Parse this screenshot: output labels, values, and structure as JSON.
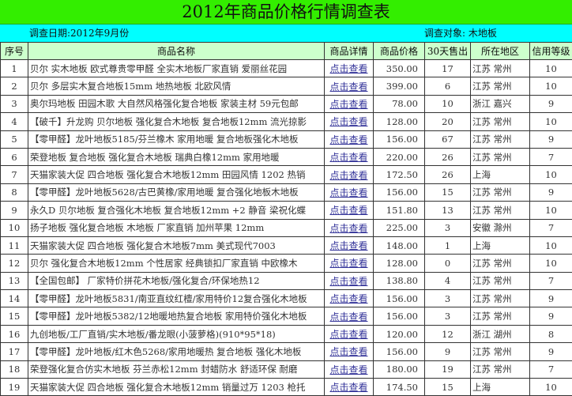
{
  "title": "2012年商品价格行情调查表",
  "survey_date": "调查日期:2012年9月份",
  "survey_object": "调查对象: 木地板",
  "headers": [
    "序号",
    "商品名称",
    "商品详情",
    "商品价格",
    "30天售出",
    "所在地区",
    "信用等级"
  ],
  "rows": [
    [
      "1",
      "贝尔 实木地板 欧式尊贵零甲醛 全实木地板厂家直销 爱丽丝花园",
      "点击查看",
      "350.00",
      "17",
      "江苏 常州",
      "10"
    ],
    [
      "2",
      "贝尔 多层实木复合地板15mm  地热地板 北欧风情",
      "点击查看",
      "399.00",
      "6",
      "江苏 常州",
      "10"
    ],
    [
      "3",
      "奥尔玛地板 田园木歌 大自然风格强化复合地板 家装主材 59元包邮",
      "点击查看",
      "78.00",
      "10",
      "浙江 嘉兴",
      "9"
    ],
    [
      "4",
      "【破千】升龙购 贝尔地板 强化复合木地板 复合地板12mm 流光掠影",
      "点击查看",
      "128.00",
      "20",
      "江苏 常州",
      "10"
    ],
    [
      "5",
      "【零甲醛】龙叶地板5185/芬兰橡木 家用地暖 复合地板强化木地板",
      "点击查看",
      "156.00",
      "67",
      "江苏 常州",
      "9"
    ],
    [
      "6",
      "荣登地板 复合地板 强化复合木地板 瑞典白橡12mm 家用地暖",
      "点击查看",
      "220.00",
      "26",
      "江苏 常州",
      "7"
    ],
    [
      "7",
      "天猫家装大促 四合地板 强化复合木地板12mm  田园风情 1202 热销",
      "点击查看",
      "172.50",
      "26",
      "上海",
      "10"
    ],
    [
      "8",
      "【零甲醛】龙叶地板5628/古巴黄橡/家用地暖 复合强化地板木地板",
      "点击查看",
      "156.00",
      "15",
      "江苏 常州",
      "9"
    ],
    [
      "9",
      "永久D 贝尔地板 复合强化木地板 复合地板12mm +2 静音 梁祝化蝶",
      "点击查看",
      "151.80",
      "13",
      "江苏 常州",
      "10"
    ],
    [
      "10",
      "扬子地板  强化复合地板 木地板 厂家直销 加州苹果 12mm",
      "点击查看",
      "225.00",
      "3",
      "安徽 滁州",
      "7"
    ],
    [
      "11",
      "天猫家装大促 四合地板 强化复合木地板7mm  美式现代7003",
      "点击查看",
      "148.00",
      "1",
      "上海",
      "10"
    ],
    [
      "12",
      "贝尔 强化复合木地板12mm 个性居家 经典锁扣厂家直销 中欧橡木",
      "点击查看",
      "128.00",
      "0",
      "江苏 常州",
      "10"
    ],
    [
      "13",
      "【全国包邮】 厂家特价拼花木地板/强化复合/环保地热12",
      "点击查看",
      "138.80",
      "4",
      "江苏 常州",
      "7"
    ],
    [
      "14",
      "【零甲醛】龙叶地板5831/南亚直纹红檀/家用特价12复合强化木地板",
      "点击查看",
      "156.00",
      "3",
      "江苏 常州",
      "9"
    ],
    [
      "15",
      "【零甲醛】龙叶地板5382/12地暖地热复合地板 家用特价强化木地板",
      "点击查看",
      "156.00",
      "3",
      "江苏 常州",
      "9"
    ],
    [
      "16",
      "九创地板/工厂直销/实木地板/番龙眼(小菠萝格)(910*95*18)",
      "点击查看",
      "120.00",
      "12",
      "浙江 湖州",
      "8"
    ],
    [
      "17",
      "【零甲醛】龙叶地板/红木色5268/家用地暖热 复合地板 强化木地板",
      "点击查看",
      "156.00",
      "9",
      "江苏 常州",
      "9"
    ],
    [
      "18",
      "荣登强化复合仿实木地板 芬兰赤松12mm 封蜡防水 舒适环保 耐磨",
      "点击查看",
      "180.00",
      "19",
      "江苏 常州",
      "7"
    ],
    [
      "19",
      "天猫家装大促 四合地板 强化复合木地板12mm  销量过万 1203 枪托",
      "点击查看",
      "174.50",
      "15",
      "上海",
      "10"
    ]
  ],
  "colors": {
    "title_bg": "#33ee00",
    "subtitle_bg": "#00ffff",
    "header_bg": "#ccffcc",
    "link": "#333399"
  }
}
